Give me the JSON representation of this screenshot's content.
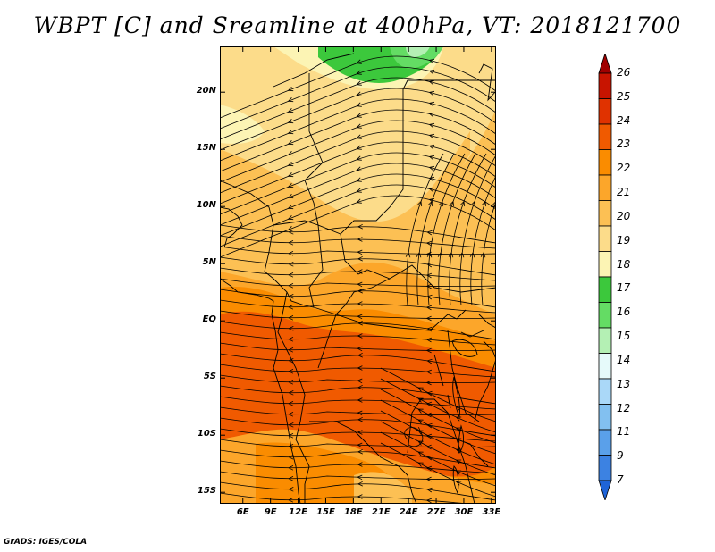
{
  "title": "WBPT [C] and Sreamline at 400hPa, VT: 2018121700",
  "footer": "GrADS: IGES/COLA",
  "map": {
    "region": "Central Africa",
    "fields": [
      "wet-bulb potential temperature (shaded)",
      "streamlines"
    ],
    "lat_range": [
      -16,
      24
    ],
    "lon_range": [
      3.5,
      33.5
    ],
    "lat_ticks": [
      {
        "label": "20N",
        "value": 20
      },
      {
        "label": "15N",
        "value": 15
      },
      {
        "label": "10N",
        "value": 10
      },
      {
        "label": "5N",
        "value": 5
      },
      {
        "label": "EQ",
        "value": 0
      },
      {
        "label": "5S",
        "value": -5
      },
      {
        "label": "10S",
        "value": -10
      },
      {
        "label": "15S",
        "value": -15
      }
    ],
    "lon_ticks": [
      {
        "label": "6E",
        "value": 6
      },
      {
        "label": "9E",
        "value": 9
      },
      {
        "label": "12E",
        "value": 12
      },
      {
        "label": "15E",
        "value": 15
      },
      {
        "label": "18E",
        "value": 18
      },
      {
        "label": "21E",
        "value": 21
      },
      {
        "label": "24E",
        "value": 24
      },
      {
        "label": "27E",
        "value": 27
      },
      {
        "label": "30E",
        "value": 30
      },
      {
        "label": "33E",
        "value": 33
      }
    ]
  },
  "colorbar": {
    "labels": [
      "26",
      "25",
      "24",
      "23",
      "22",
      "21",
      "20",
      "19",
      "18",
      "17",
      "16",
      "15",
      "14",
      "13",
      "12",
      "11",
      "9",
      "7"
    ],
    "colors": [
      "#a00000",
      "#c81400",
      "#e03200",
      "#f05a00",
      "#fa8c00",
      "#fca62a",
      "#fcc054",
      "#fcdc8a",
      "#fcf4b4",
      "#3cc83c",
      "#64dc64",
      "#b4f0b4",
      "#e6fafa",
      "#aad8f8",
      "#82c0f0",
      "#5aa0ea",
      "#3c82e2",
      "#1e64d8"
    ]
  }
}
